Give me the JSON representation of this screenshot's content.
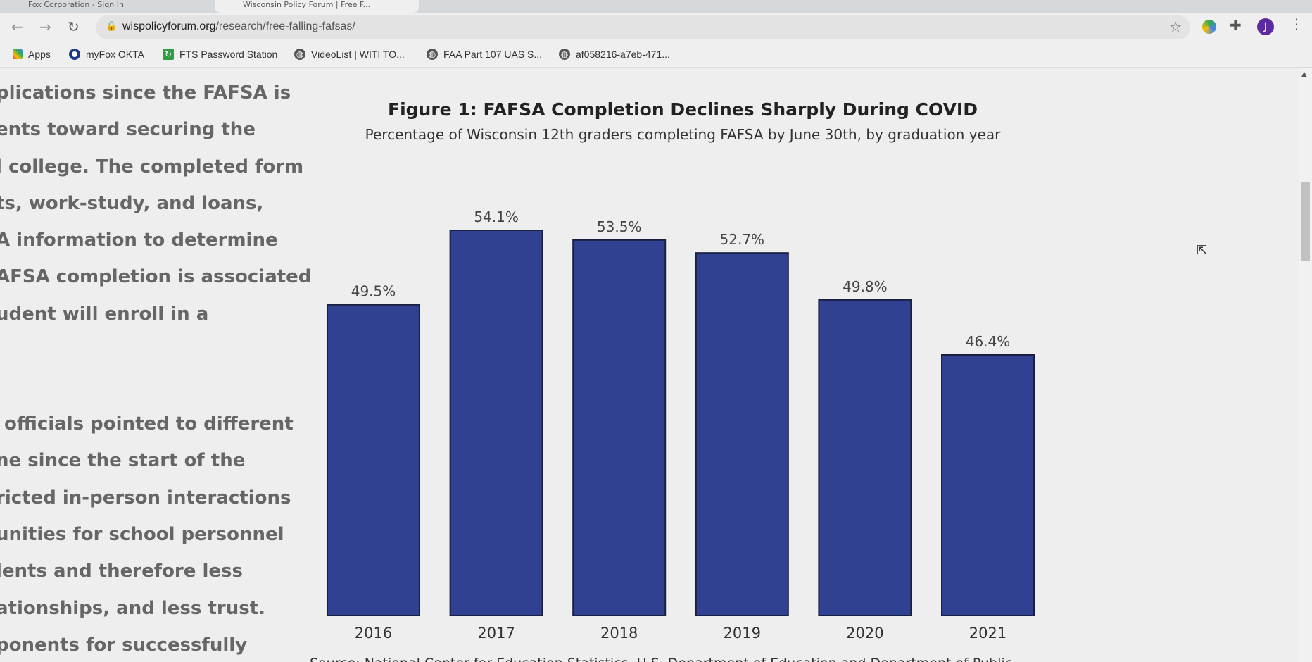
{
  "browser": {
    "tabs": [
      {
        "label": "Fox Corporation - Sign In"
      },
      {
        "label": "Wisconsin Policy Forum | Free F..."
      }
    ],
    "url_domain": "wispolicyforum.org",
    "url_path": "/research/free-falling-fafsas/",
    "profile_initial": "J",
    "bookmarks": [
      {
        "label": "Apps",
        "icon": "apps-grid-icon"
      },
      {
        "label": "myFox OKTA",
        "icon": "okta-icon"
      },
      {
        "label": "FTS Password Station",
        "icon": "refresh-green-icon"
      },
      {
        "label": "VideoList | WITI TO...",
        "icon": "globe-icon"
      },
      {
        "label": "FAA Part 107 UAS S...",
        "icon": "globe-icon"
      },
      {
        "label": "af058216-a7eb-471...",
        "icon": "globe-icon"
      }
    ]
  },
  "article": {
    "paragraph1": [
      "plications since the FAFSA is",
      "ents toward securing the",
      "l college. The completed form",
      "ts, work-study, and loans,",
      "A information to determine",
      "AFSA completion is associated",
      "udent will enroll in a"
    ],
    "paragraph2": [
      "officials pointed to different",
      "ne since the start of the",
      "ricted in-person interactions",
      "unities for school personnel",
      "lents and therefore less",
      "ationships, and less trust.",
      "ponents for successfully"
    ]
  },
  "chart_data": {
    "type": "bar",
    "title": "Figure 1: FAFSA Completion Declines Sharply During COVID",
    "subtitle": "Percentage of Wisconsin 12th graders completing FAFSA by June 30th, by graduation year",
    "categories": [
      "2016",
      "2017",
      "2018",
      "2019",
      "2020",
      "2021"
    ],
    "values": [
      49.5,
      54.1,
      53.5,
      52.7,
      49.8,
      46.4
    ],
    "labels": [
      "49.5%",
      "54.1%",
      "53.5%",
      "52.7%",
      "49.8%",
      "46.4%"
    ],
    "ylim": [
      30.3,
      54.1
    ],
    "grid": false,
    "bar_color": "#2f4190",
    "source": "Source: National Center for Education Statistics, U.S. Department of Education and Department of Public"
  }
}
